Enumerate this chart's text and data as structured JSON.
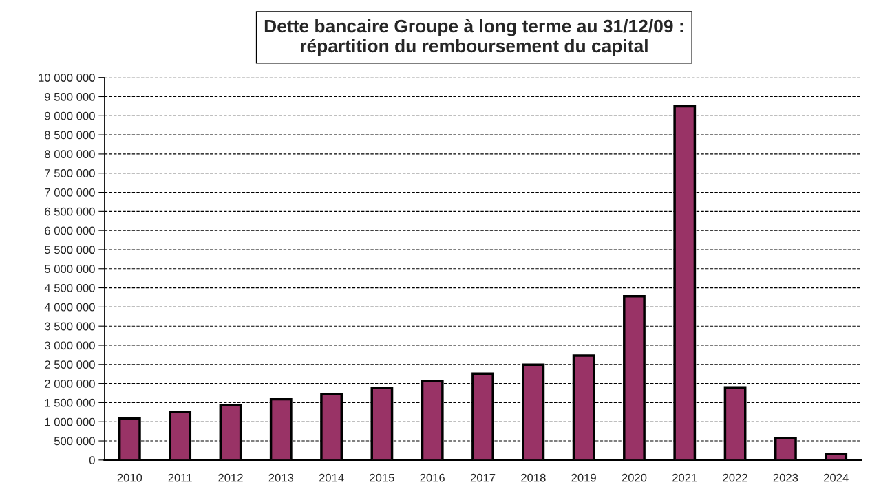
{
  "chart_data": {
    "type": "bar",
    "title": "Dette bancaire Groupe à long terme au 31/12/09 :\nrépartition du remboursement du capital",
    "categories": [
      "2010",
      "2011",
      "2012",
      "2013",
      "2014",
      "2015",
      "2016",
      "2017",
      "2018",
      "2019",
      "2020",
      "2021",
      "2022",
      "2023",
      "2024"
    ],
    "values": [
      1080000,
      1250000,
      1430000,
      1590000,
      1730000,
      1890000,
      2060000,
      2260000,
      2490000,
      2730000,
      4280000,
      9250000,
      1900000,
      570000,
      155000
    ],
    "color": "#993366",
    "ylim": [
      0,
      10000000
    ],
    "yticks": [
      {
        "value": 0,
        "label": "0"
      },
      {
        "value": 500000,
        "label": "500 000"
      },
      {
        "value": 1000000,
        "label": "1 000 000"
      },
      {
        "value": 1500000,
        "label": "1 500 000"
      },
      {
        "value": 2000000,
        "label": "2 000 000"
      },
      {
        "value": 2500000,
        "label": "2 500 000"
      },
      {
        "value": 3000000,
        "label": "3 000 000"
      },
      {
        "value": 3500000,
        "label": "3 500 000"
      },
      {
        "value": 4000000,
        "label": "4 000 000"
      },
      {
        "value": 4500000,
        "label": "4 500 000"
      },
      {
        "value": 5000000,
        "label": "5 000 000"
      },
      {
        "value": 5500000,
        "label": "5 500 000"
      },
      {
        "value": 6000000,
        "label": "6 000 000"
      },
      {
        "value": 6500000,
        "label": "6 500 000"
      },
      {
        "value": 7000000,
        "label": "7 000 000"
      },
      {
        "value": 7500000,
        "label": "7 500 000"
      },
      {
        "value": 8000000,
        "label": "8 000 000"
      },
      {
        "value": 8500000,
        "label": "8 500 000"
      },
      {
        "value": 9000000,
        "label": "9 000 000"
      },
      {
        "value": 9500000,
        "label": "9 500 000"
      },
      {
        "value": 10000000,
        "label": "10 000 000"
      }
    ],
    "grid": "y",
    "legend": false
  }
}
